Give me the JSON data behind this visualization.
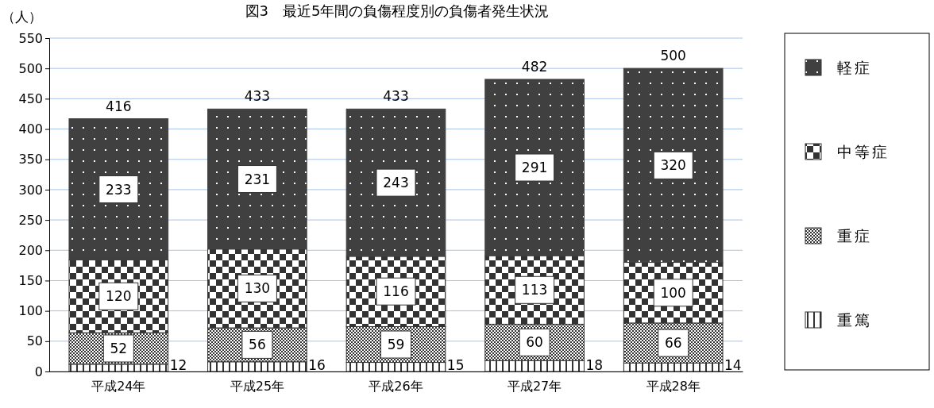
{
  "chart_data": {
    "type": "bar",
    "title": "図3　最近5年間の負傷程度別の負傷者発生状況",
    "ylabel": "（人）",
    "categories": [
      "平成24年",
      "平成25年",
      "平成26年",
      "平成27年",
      "平成28年"
    ],
    "stacked": true,
    "series": [
      {
        "name": "重篤",
        "color": "#333333",
        "values": [
          12,
          16,
          15,
          18,
          14
        ]
      },
      {
        "name": "重症",
        "color": "#333333",
        "values": [
          52,
          56,
          59,
          60,
          66
        ]
      },
      {
        "name": "中等症",
        "color": "#333333",
        "values": [
          120,
          130,
          116,
          113,
          100
        ]
      },
      {
        "name": "軽症",
        "color": "#404040",
        "values": [
          233,
          231,
          243,
          291,
          320
        ]
      }
    ],
    "totals": [
      "416",
      "433",
      "433",
      "482",
      "500"
    ],
    "data_labels": true,
    "ylim": [
      0,
      550
    ],
    "yticks": [
      0,
      50,
      100,
      150,
      200,
      250,
      300,
      350,
      400,
      450,
      500,
      550
    ],
    "grid": "y",
    "legend": "right"
  }
}
